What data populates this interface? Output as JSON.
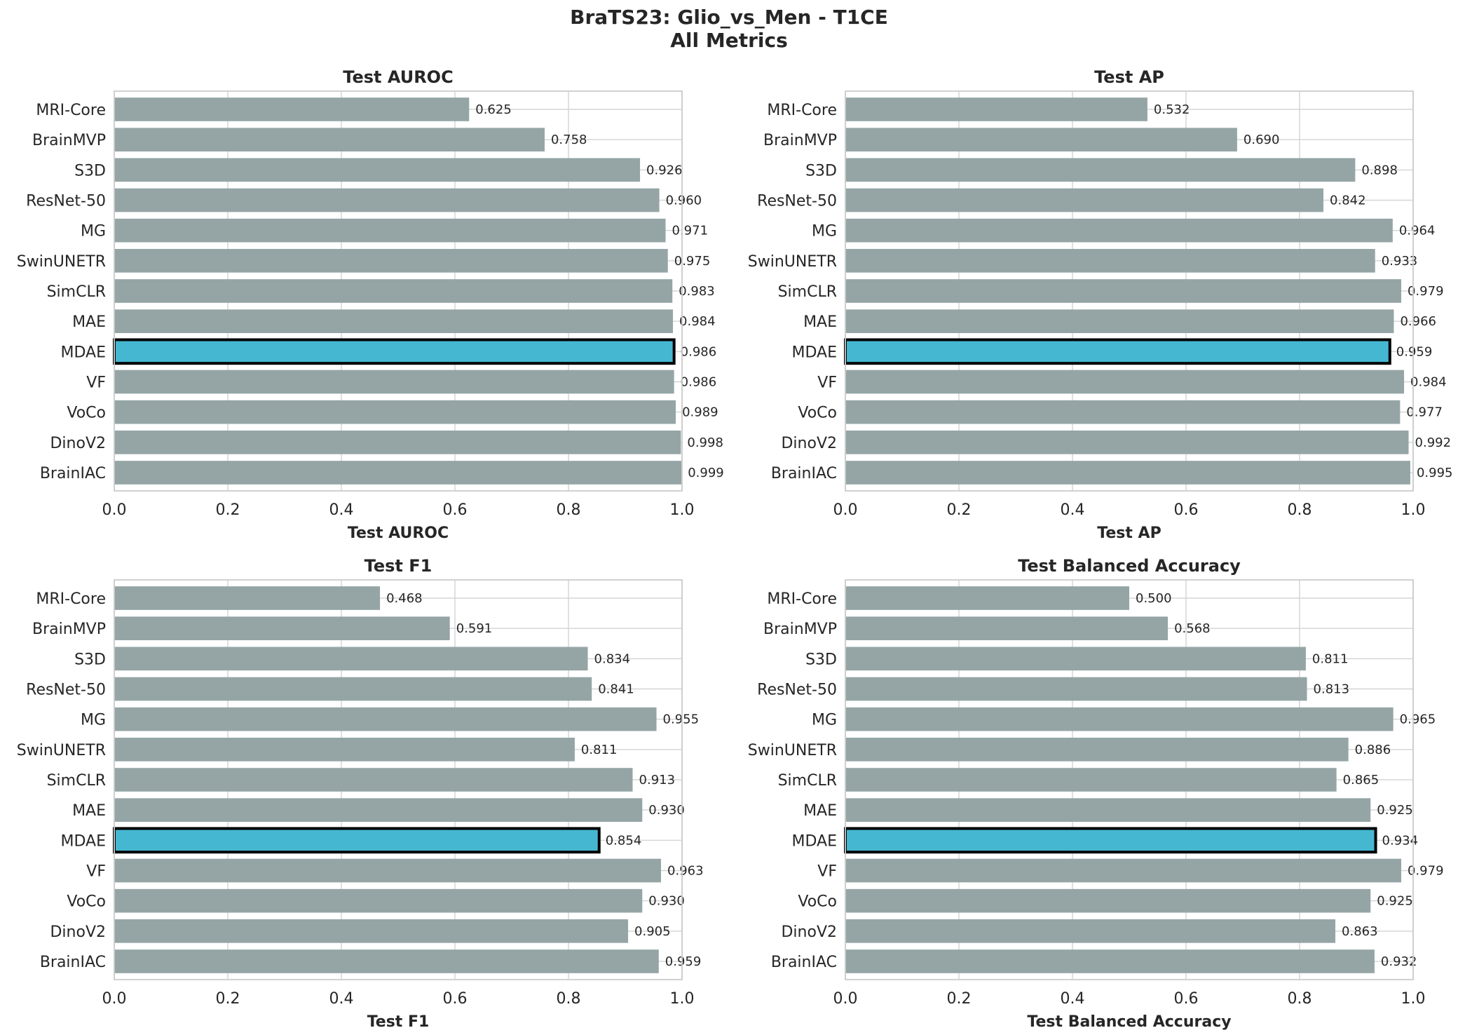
{
  "figure": {
    "title_line1": "BraTS23: Glio_vs_Men - T1CE",
    "title_line2": "All Metrics"
  },
  "colors": {
    "bar": "#95a5a6",
    "highlight": "#45b7d1",
    "highlight_edge": "#000000",
    "grid": "#d6d6d6",
    "spine": "#cccccc"
  },
  "chart_data": [
    {
      "type": "bar",
      "orientation": "horizontal",
      "title": "Test AUROC",
      "xlabel": "Test AUROC",
      "xlim": [
        0,
        1
      ],
      "xticks": [
        "0.0",
        "0.2",
        "0.4",
        "0.6",
        "0.8",
        "1.0"
      ],
      "grid": true,
      "highlight": "MDAE",
      "categories": [
        "MRI-Core",
        "BrainMVP",
        "S3D",
        "ResNet-50",
        "MG",
        "SwinUNETR",
        "SimCLR",
        "MAE",
        "MDAE",
        "VF",
        "VoCo",
        "DinoV2",
        "BrainIAC"
      ],
      "values": [
        0.625,
        0.758,
        0.926,
        0.96,
        0.971,
        0.975,
        0.983,
        0.984,
        0.986,
        0.986,
        0.989,
        0.998,
        0.999
      ],
      "labels": [
        "0.625",
        "0.758",
        "0.926",
        "0.960",
        "0.971",
        "0.975",
        "0.983",
        "0.984",
        "0.986",
        "0.986",
        "0.989",
        "0.998",
        "0.999"
      ]
    },
    {
      "type": "bar",
      "orientation": "horizontal",
      "title": "Test AP",
      "xlabel": "Test AP",
      "xlim": [
        0,
        1
      ],
      "xticks": [
        "0.0",
        "0.2",
        "0.4",
        "0.6",
        "0.8",
        "1.0"
      ],
      "grid": true,
      "highlight": "MDAE",
      "categories": [
        "MRI-Core",
        "BrainMVP",
        "S3D",
        "ResNet-50",
        "MG",
        "SwinUNETR",
        "SimCLR",
        "MAE",
        "MDAE",
        "VF",
        "VoCo",
        "DinoV2",
        "BrainIAC"
      ],
      "values": [
        0.532,
        0.69,
        0.898,
        0.842,
        0.964,
        0.933,
        0.979,
        0.966,
        0.959,
        0.984,
        0.977,
        0.992,
        0.995
      ],
      "labels": [
        "0.532",
        "0.690",
        "0.898",
        "0.842",
        "0.964",
        "0.933",
        "0.979",
        "0.966",
        "0.959",
        "0.984",
        "0.977",
        "0.992",
        "0.995"
      ]
    },
    {
      "type": "bar",
      "orientation": "horizontal",
      "title": "Test F1",
      "xlabel": "Test F1",
      "xlim": [
        0,
        1
      ],
      "xticks": [
        "0.0",
        "0.2",
        "0.4",
        "0.6",
        "0.8",
        "1.0"
      ],
      "grid": true,
      "highlight": "MDAE",
      "categories": [
        "MRI-Core",
        "BrainMVP",
        "S3D",
        "ResNet-50",
        "MG",
        "SwinUNETR",
        "SimCLR",
        "MAE",
        "MDAE",
        "VF",
        "VoCo",
        "DinoV2",
        "BrainIAC"
      ],
      "values": [
        0.468,
        0.591,
        0.834,
        0.841,
        0.955,
        0.811,
        0.913,
        0.93,
        0.854,
        0.963,
        0.93,
        0.905,
        0.959
      ],
      "labels": [
        "0.468",
        "0.591",
        "0.834",
        "0.841",
        "0.955",
        "0.811",
        "0.913",
        "0.930",
        "0.854",
        "0.963",
        "0.930",
        "0.905",
        "0.959"
      ]
    },
    {
      "type": "bar",
      "orientation": "horizontal",
      "title": "Test Balanced Accuracy",
      "xlabel": "Test Balanced Accuracy",
      "xlim": [
        0,
        1
      ],
      "xticks": [
        "0.0",
        "0.2",
        "0.4",
        "0.6",
        "0.8",
        "1.0"
      ],
      "grid": true,
      "highlight": "MDAE",
      "categories": [
        "MRI-Core",
        "BrainMVP",
        "S3D",
        "ResNet-50",
        "MG",
        "SwinUNETR",
        "SimCLR",
        "MAE",
        "MDAE",
        "VF",
        "VoCo",
        "DinoV2",
        "BrainIAC"
      ],
      "values": [
        0.5,
        0.568,
        0.811,
        0.813,
        0.965,
        0.886,
        0.865,
        0.925,
        0.934,
        0.979,
        0.925,
        0.863,
        0.932
      ],
      "labels": [
        "0.500",
        "0.568",
        "0.811",
        "0.813",
        "0.965",
        "0.886",
        "0.865",
        "0.925",
        "0.934",
        "0.979",
        "0.925",
        "0.863",
        "0.932"
      ]
    }
  ]
}
